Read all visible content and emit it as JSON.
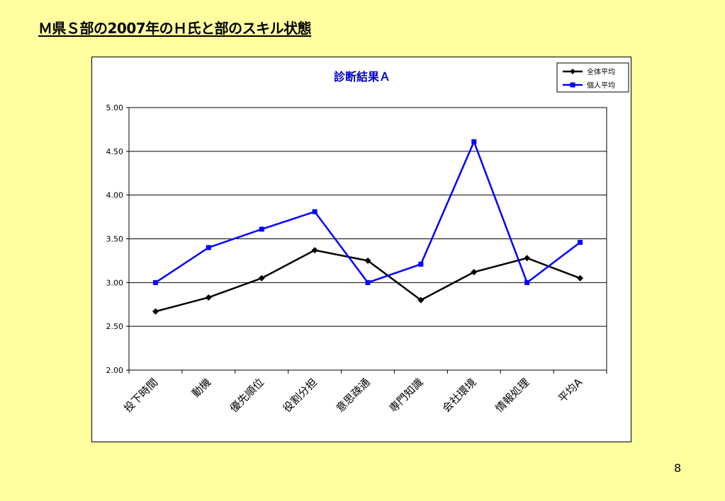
{
  "slide": {
    "title": "Ｍ県Ｓ部の2007年のＨ氏と部のスキル状態",
    "page_number": "8"
  },
  "chart_data": {
    "type": "line",
    "title": "診断結果Ａ",
    "categories": [
      "投下時間",
      "動機",
      "優先順位",
      "役割分担",
      "意思疎通",
      "専門知識",
      "会社環境",
      "情報処理",
      "平均A"
    ],
    "series": [
      {
        "name": "全体平均",
        "color": "#000000",
        "marker": "diamond",
        "values": [
          2.67,
          2.83,
          3.05,
          3.37,
          3.25,
          2.8,
          3.12,
          3.28,
          3.05
        ]
      },
      {
        "name": "個人平均",
        "color": "#0000FF",
        "marker": "square",
        "values": [
          3.0,
          3.4,
          3.61,
          3.81,
          3.0,
          3.21,
          4.61,
          3.0,
          3.46
        ]
      }
    ],
    "ylim": [
      2.0,
      5.0
    ],
    "yticks": [
      "2.00",
      "2.50",
      "3.00",
      "3.50",
      "4.00",
      "4.50",
      "5.00"
    ],
    "grid": true,
    "legend": "top-right",
    "xlabel": "",
    "ylabel": ""
  }
}
